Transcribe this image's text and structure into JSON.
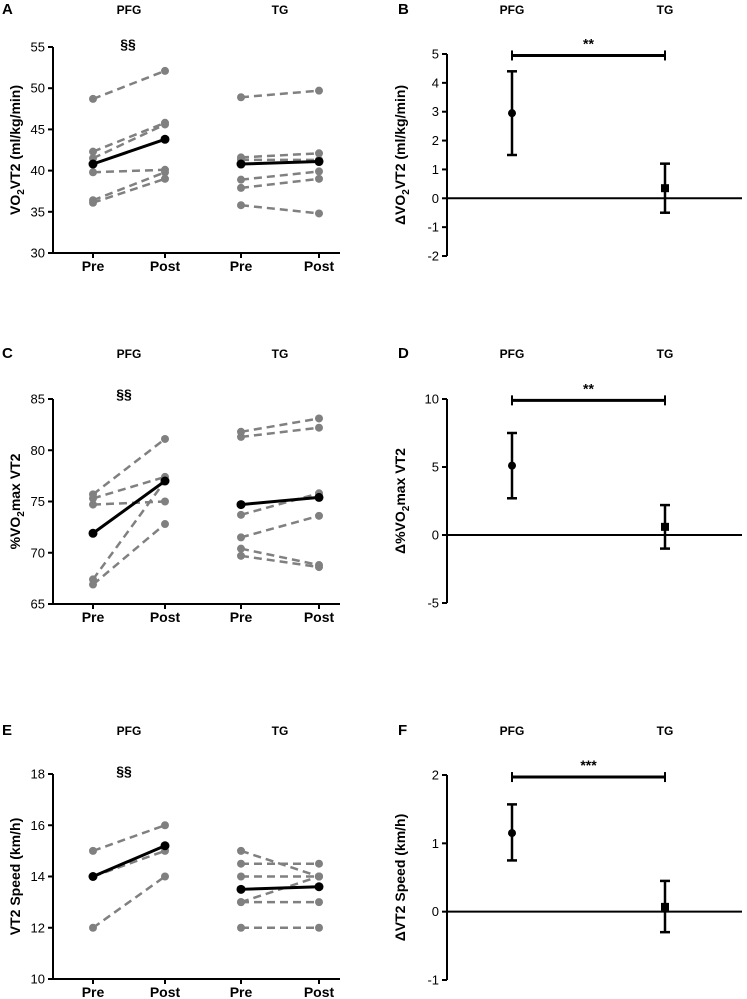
{
  "chart_data": [
    {
      "type": "line",
      "panel": "A",
      "group_labels": [
        "PFG",
        "TG"
      ],
      "x_categories": [
        "Pre",
        "Post",
        "Pre",
        "Post"
      ],
      "ylabel": "VO2VT2 (ml/kg/min)",
      "ylim": [
        30,
        55
      ],
      "yticks": [
        30,
        35,
        40,
        45,
        50,
        55
      ],
      "annotation": "§§",
      "individual_color": "#808080",
      "mean_color": "#000000",
      "groups": [
        {
          "name": "PFG",
          "individuals": [
            [
              48.7,
              52.1
            ],
            [
              42.3,
              45.8
            ],
            [
              41.5,
              45.6
            ],
            [
              39.8,
              40.1
            ],
            [
              36.4,
              39.8
            ],
            [
              36.1,
              39.0
            ]
          ],
          "mean": [
            40.8,
            43.8
          ]
        },
        {
          "name": "TG",
          "individuals": [
            [
              48.9,
              49.7
            ],
            [
              41.6,
              42.1
            ],
            [
              41.3,
              41.3
            ],
            [
              38.9,
              39.9
            ],
            [
              37.9,
              39.0
            ],
            [
              35.8,
              34.8
            ]
          ],
          "mean": [
            40.8,
            41.1
          ]
        }
      ]
    },
    {
      "type": "errorbar",
      "panel": "B",
      "categories": [
        "PFG",
        "TG"
      ],
      "ylabel": "ΔVO2VT2 (ml/kg/min)",
      "ylim": [
        -2,
        5
      ],
      "yticks": [
        -2,
        -1,
        0,
        1,
        2,
        3,
        4,
        5
      ],
      "points": [
        {
          "name": "PFG",
          "mean": 2.95,
          "low": 1.5,
          "high": 4.4,
          "marker": "circle"
        },
        {
          "name": "TG",
          "mean": 0.35,
          "low": -0.5,
          "high": 1.2,
          "marker": "square"
        }
      ],
      "significance": {
        "label": "**",
        "y": 4.95
      }
    },
    {
      "type": "line",
      "panel": "C",
      "group_labels": [
        "PFG",
        "TG"
      ],
      "x_categories": [
        "Pre",
        "Post",
        "Pre",
        "Post"
      ],
      "ylabel": "%VO2max VT2",
      "ylim": [
        65,
        85
      ],
      "yticks": [
        65,
        70,
        75,
        80,
        85
      ],
      "annotation": "§§",
      "individual_color": "#808080",
      "mean_color": "#000000",
      "groups": [
        {
          "name": "PFG",
          "individuals": [
            [
              75.7,
              81.1
            ],
            [
              75.3,
              77.4
            ],
            [
              74.7,
              75.0
            ],
            [
              67.4,
              77.0
            ],
            [
              66.9,
              72.8
            ]
          ],
          "mean": [
            71.9,
            77.0
          ]
        },
        {
          "name": "TG",
          "individuals": [
            [
              81.8,
              83.1
            ],
            [
              81.3,
              82.2
            ],
            [
              73.7,
              75.8
            ],
            [
              71.5,
              73.6
            ],
            [
              70.4,
              68.8
            ],
            [
              69.7,
              68.6
            ]
          ],
          "mean": [
            74.7,
            75.4
          ]
        }
      ]
    },
    {
      "type": "errorbar",
      "panel": "D",
      "categories": [
        "PFG",
        "TG"
      ],
      "ylabel": "Δ%VO2max VT2",
      "ylim": [
        -5,
        10
      ],
      "yticks": [
        -5,
        0,
        5,
        10
      ],
      "points": [
        {
          "name": "PFG",
          "mean": 5.1,
          "low": 2.7,
          "high": 7.5,
          "marker": "circle"
        },
        {
          "name": "TG",
          "mean": 0.6,
          "low": -1.0,
          "high": 2.2,
          "marker": "square"
        }
      ],
      "significance": {
        "label": "**",
        "y": 9.9
      }
    },
    {
      "type": "line",
      "panel": "E",
      "group_labels": [
        "PFG",
        "TG"
      ],
      "x_categories": [
        "Pre",
        "Post",
        "Pre",
        "Post"
      ],
      "ylabel": "VT2 Speed (km/h)",
      "ylim": [
        10,
        18
      ],
      "yticks": [
        10,
        12,
        14,
        16,
        18
      ],
      "annotation": "§§",
      "individual_color": "#808080",
      "mean_color": "#000000",
      "groups": [
        {
          "name": "PFG",
          "individuals": [
            [
              15.0,
              16.0
            ],
            [
              14.0,
              15.0
            ],
            [
              12.0,
              14.0
            ]
          ],
          "mean": [
            14.0,
            15.2
          ]
        },
        {
          "name": "TG",
          "individuals": [
            [
              15.0,
              14.0
            ],
            [
              14.5,
              14.5
            ],
            [
              14.0,
              14.0
            ],
            [
              13.0,
              14.0
            ],
            [
              13.0,
              13.0
            ],
            [
              12.0,
              12.0
            ]
          ],
          "mean": [
            13.5,
            13.6
          ]
        }
      ]
    },
    {
      "type": "errorbar",
      "panel": "F",
      "categories": [
        "PFG",
        "TG"
      ],
      "ylabel": "ΔVT2 Speed (km/h)",
      "ylim": [
        -1,
        2
      ],
      "yticks": [
        -1,
        0,
        1,
        2
      ],
      "points": [
        {
          "name": "PFG",
          "mean": 1.15,
          "low": 0.75,
          "high": 1.57,
          "marker": "circle"
        },
        {
          "name": "TG",
          "mean": 0.07,
          "low": -0.3,
          "high": 0.45,
          "marker": "square"
        }
      ],
      "significance": {
        "label": "***",
        "y": 1.97
      }
    }
  ]
}
